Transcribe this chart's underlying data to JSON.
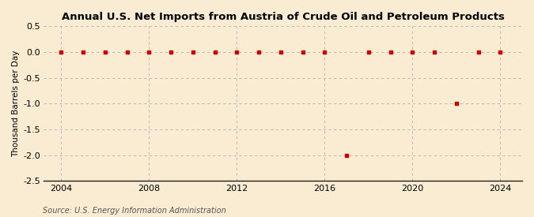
{
  "title": "Annual U.S. Net Imports from Austria of Crude Oil and Petroleum Products",
  "ylabel": "Thousand Barrels per Day",
  "source": "Source: U.S. Energy Information Administration",
  "background_color": "#faecd2",
  "years": [
    2004,
    2005,
    2006,
    2007,
    2008,
    2009,
    2010,
    2011,
    2012,
    2013,
    2014,
    2015,
    2016,
    2017,
    2018,
    2019,
    2020,
    2021,
    2022,
    2023,
    2024
  ],
  "values": [
    0,
    0,
    0,
    0,
    0,
    0,
    0,
    0,
    0,
    0,
    0,
    0,
    0,
    -2.0,
    0,
    0,
    0,
    0,
    -1.0,
    0,
    0
  ],
  "marker_color": "#cc0000",
  "marker_size": 3.5,
  "ylim": [
    -2.5,
    0.5
  ],
  "yticks": [
    0.5,
    0.0,
    -0.5,
    -1.0,
    -1.5,
    -2.0,
    -2.5
  ],
  "xlim": [
    2003.2,
    2025
  ],
  "xticks": [
    2004,
    2008,
    2012,
    2016,
    2020,
    2024
  ],
  "grid_color": "#b0b0b0",
  "grid_linestyle": "--",
  "title_fontsize": 9.5,
  "label_fontsize": 7.5,
  "tick_fontsize": 8,
  "source_fontsize": 7
}
